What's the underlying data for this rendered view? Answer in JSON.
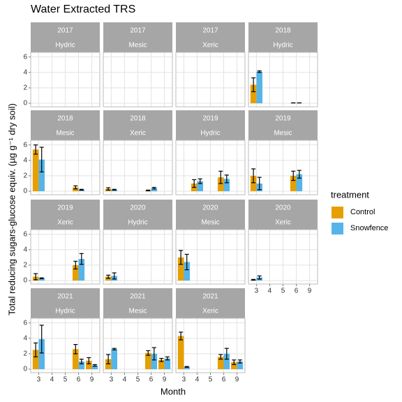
{
  "chart_data": {
    "type": "bar",
    "title": "Water Extracted TRS",
    "x_label": "Month",
    "y_label": "Total reducing sugars-glucose equiv. (µg g⁻¹ dry soil)",
    "legend_title": "treatment",
    "legend_position": "right",
    "categories": [
      "3",
      "4",
      "5",
      "6",
      "9"
    ],
    "ylim": [
      -0.45,
      6.6
    ],
    "yticks": [
      0,
      2,
      4,
      6
    ],
    "grid": true,
    "series": [
      {
        "name": "Control",
        "color": "#E69F00"
      },
      {
        "name": "Snowfence",
        "color": "#56B4E9"
      }
    ],
    "panels": [
      {
        "year": "2017",
        "site": "Hydric",
        "values": [
          [
            null,
            null,
            null,
            null,
            null
          ],
          [
            null,
            null,
            null,
            null,
            null
          ]
        ],
        "errors": [
          [
            null,
            null,
            null,
            null,
            null
          ],
          [
            null,
            null,
            null,
            null,
            null
          ]
        ]
      },
      {
        "year": "2017",
        "site": "Mesic",
        "values": [
          [
            null,
            null,
            null,
            null,
            null
          ],
          [
            null,
            null,
            null,
            null,
            null
          ]
        ],
        "errors": [
          [
            null,
            null,
            null,
            null,
            null
          ],
          [
            null,
            null,
            null,
            null,
            null
          ]
        ]
      },
      {
        "year": "2017",
        "site": "Xeric",
        "values": [
          [
            null,
            null,
            null,
            null,
            null
          ],
          [
            null,
            null,
            null,
            null,
            null
          ]
        ],
        "errors": [
          [
            null,
            null,
            null,
            null,
            null
          ],
          [
            null,
            null,
            null,
            null,
            null
          ]
        ]
      },
      {
        "year": "2018",
        "site": "Hydric",
        "values": [
          [
            2.4,
            null,
            null,
            0.05,
            null
          ],
          [
            4.1,
            null,
            null,
            0.05,
            null
          ]
        ],
        "errors": [
          [
            0.9,
            null,
            null,
            0,
            null
          ],
          [
            0.1,
            null,
            null,
            0,
            null
          ]
        ]
      },
      {
        "year": "2018",
        "site": "Mesic",
        "values": [
          [
            5.4,
            null,
            null,
            0.5,
            null
          ],
          [
            4.1,
            null,
            null,
            0.2,
            null
          ]
        ],
        "errors": [
          [
            0.6,
            null,
            null,
            0.2,
            null
          ],
          [
            1.6,
            null,
            null,
            0.05,
            null
          ]
        ]
      },
      {
        "year": "2018",
        "site": "Xeric",
        "values": [
          [
            0.3,
            null,
            null,
            0.1,
            null
          ],
          [
            0.2,
            null,
            null,
            0.4,
            null
          ]
        ],
        "errors": [
          [
            0.15,
            null,
            null,
            0.05,
            null
          ],
          [
            0.05,
            null,
            null,
            0.1,
            null
          ]
        ]
      },
      {
        "year": "2019",
        "site": "Hydric",
        "values": [
          [
            null,
            1.0,
            null,
            1.8,
            null
          ],
          [
            null,
            1.3,
            null,
            1.6,
            null
          ]
        ],
        "errors": [
          [
            null,
            0.5,
            null,
            0.8,
            null
          ],
          [
            null,
            0.3,
            null,
            0.5,
            null
          ]
        ]
      },
      {
        "year": "2019",
        "site": "Mesic",
        "values": [
          [
            2.0,
            null,
            null,
            2.0,
            null
          ],
          [
            1.0,
            null,
            null,
            2.2,
            null
          ]
        ],
        "errors": [
          [
            0.9,
            null,
            null,
            0.6,
            null
          ],
          [
            0.8,
            null,
            null,
            0.5,
            null
          ]
        ]
      },
      {
        "year": "2019",
        "site": "Xeric",
        "values": [
          [
            0.5,
            null,
            null,
            2.0,
            null
          ],
          [
            0.3,
            null,
            null,
            2.8,
            null
          ]
        ],
        "errors": [
          [
            0.4,
            null,
            null,
            0.5,
            null
          ],
          [
            0.05,
            null,
            null,
            0.7,
            null
          ]
        ]
      },
      {
        "year": "2020",
        "site": "Hydric",
        "values": [
          [
            0.5,
            null,
            null,
            null,
            null
          ],
          [
            0.6,
            null,
            null,
            null,
            null
          ]
        ],
        "errors": [
          [
            0.2,
            null,
            null,
            null,
            null
          ],
          [
            0.4,
            null,
            null,
            null,
            null
          ]
        ]
      },
      {
        "year": "2020",
        "site": "Mesic",
        "values": [
          [
            3.0,
            null,
            null,
            null,
            null
          ],
          [
            2.4,
            null,
            null,
            null,
            null
          ]
        ],
        "errors": [
          [
            0.9,
            null,
            null,
            null,
            null
          ],
          [
            1.0,
            null,
            null,
            null,
            null
          ]
        ]
      },
      {
        "year": "2020",
        "site": "Xeric",
        "values": [
          [
            0.1,
            null,
            null,
            null,
            null
          ],
          [
            0.4,
            null,
            null,
            null,
            null
          ]
        ],
        "errors": [
          [
            0.05,
            null,
            null,
            null,
            null
          ],
          [
            0.2,
            null,
            null,
            null,
            null
          ]
        ]
      },
      {
        "year": "2021",
        "site": "Hydric",
        "values": [
          [
            2.5,
            null,
            null,
            2.6,
            1.1
          ],
          [
            3.9,
            null,
            null,
            1.0,
            0.5
          ]
        ],
        "errors": [
          [
            0.9,
            null,
            null,
            0.6,
            0.4
          ],
          [
            1.8,
            null,
            null,
            0.3,
            0.1
          ]
        ]
      },
      {
        "year": "2021",
        "site": "Mesic",
        "values": [
          [
            1.3,
            null,
            null,
            2.1,
            1.2
          ],
          [
            2.6,
            null,
            null,
            2.0,
            1.4
          ]
        ],
        "errors": [
          [
            0.6,
            null,
            null,
            0.3,
            0.2
          ],
          [
            0.1,
            null,
            null,
            0.8,
            0.2
          ]
        ]
      },
      {
        "year": "2021",
        "site": "Xeric",
        "values": [
          [
            4.3,
            null,
            null,
            1.6,
            0.9
          ],
          [
            0.3,
            null,
            null,
            2.0,
            1.0
          ]
        ],
        "errors": [
          [
            0.5,
            null,
            null,
            0.3,
            0.3
          ],
          [
            0.05,
            null,
            null,
            0.7,
            0.2
          ]
        ]
      }
    ]
  }
}
